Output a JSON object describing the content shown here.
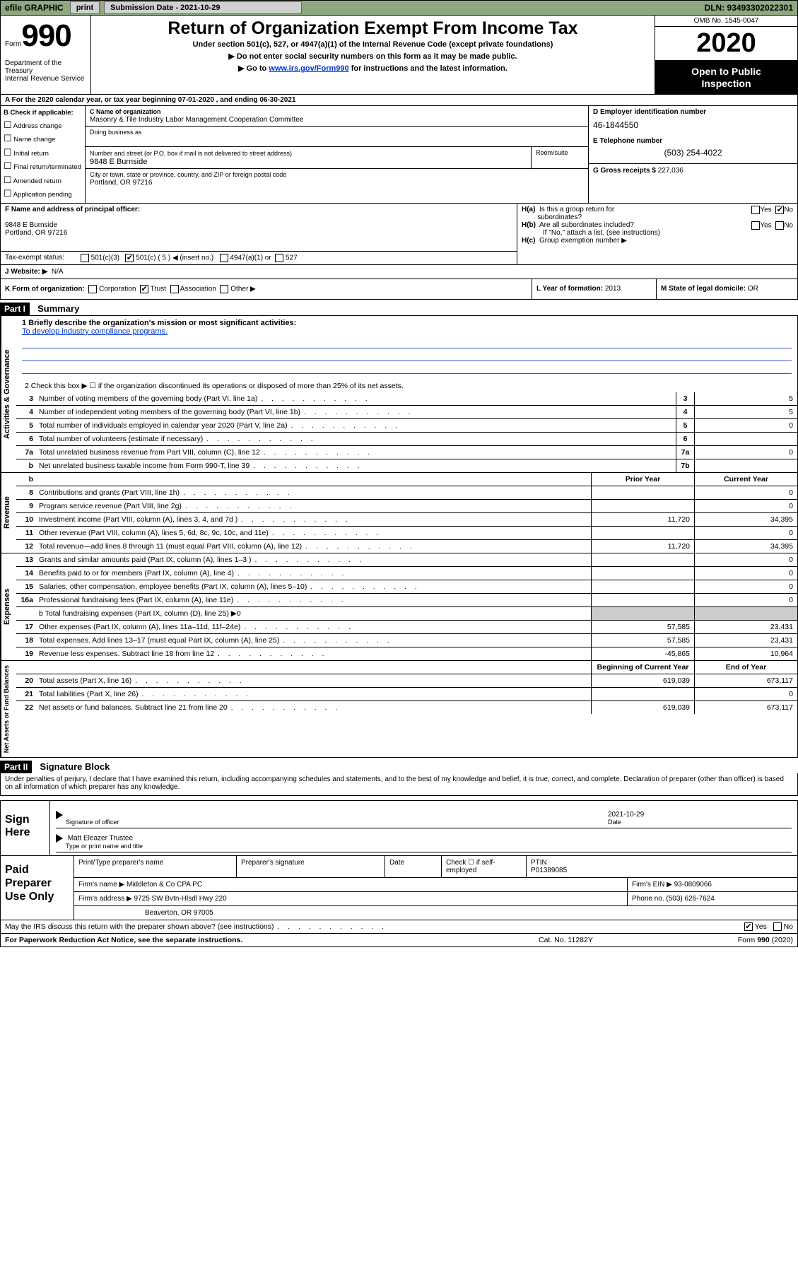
{
  "colors": {
    "topbar_bg": "#8fa880",
    "link": "#0033cc",
    "black": "#000000",
    "shaded": "#cccccc"
  },
  "topbar": {
    "efile_prefix": "efile",
    "efile_label": "GRAPHIC",
    "print_btn": "print",
    "submission_label": "Submission Date - 2021-10-29",
    "dln": "DLN: 93493302022301"
  },
  "header": {
    "form_label": "Form",
    "form_number": "990",
    "dept": "Department of the Treasury\nInternal Revenue Service",
    "title": "Return of Organization Exempt From Income Tax",
    "subtitle": "Under section 501(c), 527, or 4947(a)(1) of the Internal Revenue Code (except private foundations)",
    "instr1": "▶ Do not enter social security numbers on this form as it may be made public.",
    "instr2_prefix": "▶ Go to ",
    "instr2_link": "www.irs.gov/Form990",
    "instr2_suffix": " for instructions and the latest information.",
    "omb": "OMB No. 1545-0047",
    "year": "2020",
    "open_public": "Open to Public Inspection"
  },
  "section_a": "A   For the 2020 calendar year, or tax year beginning 07-01-2020    , and ending 06-30-2021",
  "box_b": {
    "title": "B Check if applicable:",
    "items": [
      "Address change",
      "Name change",
      "Initial return",
      "Final return/terminated",
      "Amended return",
      "Application pending"
    ]
  },
  "org": {
    "name_label": "C Name of organization",
    "name": "Masonry & Tile Industry Labor Management Cooperation Committee",
    "dba_label": "Doing business as",
    "dba": "",
    "street_label": "Number and street (or P.O. box if mail is not delivered to street address)",
    "street": "9848 E Burnside",
    "suite_label": "Room/suite",
    "city_label": "City or town, state or province, country, and ZIP or foreign postal code",
    "city": "Portland, OR  97216"
  },
  "box_d": {
    "ein_label": "D Employer identification number",
    "ein": "46-1844550",
    "tel_label": "E Telephone number",
    "tel": "(503) 254-4022",
    "gross_label": "G Gross receipts $",
    "gross": "227,036"
  },
  "po": {
    "label": "F Name and address of principal officer:",
    "addr1": "9848 E Burnside",
    "addr2": "Portland, OR  97216"
  },
  "tax_status": {
    "label": "Tax-exempt status:",
    "c3": "501(c)(3)",
    "c_insert_prefix": "501(c) (",
    "c_insert_val": "5",
    "c_insert_suffix": ") ◀ (insert no.)",
    "a1": "4947(a)(1) or",
    "s527": "527"
  },
  "h": {
    "ha": "H(a)  Is this a group return for subordinates?",
    "hb": "H(b)  Are all subordinates included?",
    "hb_note": "If \"No,\" attach a list. (see instructions)",
    "hc": "H(c)  Group exemption number ▶",
    "yes": "Yes",
    "no": "No"
  },
  "website": {
    "label": "J   Website: ▶",
    "value": "N/A"
  },
  "k": {
    "label": "K Form of organization:",
    "corp": "Corporation",
    "trust": "Trust",
    "assoc": "Association",
    "other": "Other ▶"
  },
  "l": {
    "label": "L Year of formation:",
    "value": "2013"
  },
  "m": {
    "label": "M State of legal domicile:",
    "value": "OR"
  },
  "part1": {
    "tag": "Part I",
    "title": "Summary"
  },
  "summary": {
    "mission_label": "1   Briefly describe the organization's mission or most significant activities:",
    "mission": "To develop industry compliance programs.",
    "line2": "2    Check this box ▶ ☐  if the organization discontinued its operations or disposed of more than 25% of its net assets.",
    "rows_top": [
      {
        "n": "3",
        "d": "Number of voting members of the governing body (Part VI, line 1a)",
        "bn": "3",
        "v": "5"
      },
      {
        "n": "4",
        "d": "Number of independent voting members of the governing body (Part VI, line 1b)",
        "bn": "4",
        "v": "5"
      },
      {
        "n": "5",
        "d": "Total number of individuals employed in calendar year 2020 (Part V, line 2a)",
        "bn": "5",
        "v": "0"
      },
      {
        "n": "6",
        "d": "Total number of volunteers (estimate if necessary)",
        "bn": "6",
        "v": ""
      },
      {
        "n": "7a",
        "d": "Total unrelated business revenue from Part VIII, column (C), line 12",
        "bn": "7a",
        "v": "0"
      },
      {
        "n": "b",
        "d": "Net unrelated business taxable income from Form 990-T, line 39",
        "bn": "7b",
        "v": ""
      }
    ],
    "col_headers": {
      "py": "Prior Year",
      "cy": "Current Year"
    },
    "rows_rev": [
      {
        "n": "8",
        "d": "Contributions and grants (Part VIII, line 1h)",
        "py": "",
        "cy": "0"
      },
      {
        "n": "9",
        "d": "Program service revenue (Part VIII, line 2g)",
        "py": "",
        "cy": "0"
      },
      {
        "n": "10",
        "d": "Investment income (Part VIII, column (A), lines 3, 4, and 7d )",
        "py": "11,720",
        "cy": "34,395"
      },
      {
        "n": "11",
        "d": "Other revenue (Part VIII, column (A), lines 5, 6d, 8c, 9c, 10c, and 11e)",
        "py": "",
        "cy": "0"
      },
      {
        "n": "12",
        "d": "Total revenue—add lines 8 through 11 (must equal Part VIII, column (A), line 12)",
        "py": "11,720",
        "cy": "34,395"
      }
    ],
    "rows_exp": [
      {
        "n": "13",
        "d": "Grants and similar amounts paid (Part IX, column (A), lines 1–3 )",
        "py": "",
        "cy": "0"
      },
      {
        "n": "14",
        "d": "Benefits paid to or for members (Part IX, column (A), line 4)",
        "py": "",
        "cy": "0"
      },
      {
        "n": "15",
        "d": "Salaries, other compensation, employee benefits (Part IX, column (A), lines 5–10)",
        "py": "",
        "cy": "0"
      },
      {
        "n": "16a",
        "d": "Professional fundraising fees (Part IX, column (A), line 11e)",
        "py": "",
        "cy": "0"
      }
    ],
    "line16b": "b   Total fundraising expenses (Part IX, column (D), line 25) ▶0",
    "rows_exp2": [
      {
        "n": "17",
        "d": "Other expenses (Part IX, column (A), lines 11a–11d, 11f–24e)",
        "py": "57,585",
        "cy": "23,431"
      },
      {
        "n": "18",
        "d": "Total expenses. Add lines 13–17 (must equal Part IX, column (A), line 25)",
        "py": "57,585",
        "cy": "23,431"
      },
      {
        "n": "19",
        "d": "Revenue less expenses. Subtract line 18 from line 12",
        "py": "-45,865",
        "cy": "10,964"
      }
    ],
    "col_headers2": {
      "py": "Beginning of Current Year",
      "cy": "End of Year"
    },
    "rows_net": [
      {
        "n": "20",
        "d": "Total assets (Part X, line 16)",
        "py": "619,039",
        "cy": "673,117"
      },
      {
        "n": "21",
        "d": "Total liabilities (Part X, line 26)",
        "py": "",
        "cy": "0"
      },
      {
        "n": "22",
        "d": "Net assets or fund balances. Subtract line 21 from line 20",
        "py": "619,039",
        "cy": "673,117"
      }
    ]
  },
  "sidebar": {
    "gov": "Activities & Governance",
    "rev": "Revenue",
    "exp": "Expenses",
    "net": "Net Assets or Fund Balances"
  },
  "part2": {
    "tag": "Part II",
    "title": "Signature Block"
  },
  "jurat": "Under penalties of perjury, I declare that I have examined this return, including accompanying schedules and statements, and to the best of my knowledge and belief, it is true, correct, and complete. Declaration of preparer (other than officer) is based on all information of which preparer has any knowledge.",
  "sign": {
    "label": "Sign Here",
    "sig_label": "Signature of officer",
    "date_label": "Date",
    "date": "2021-10-29",
    "name": "Matt Eleazer Trustee",
    "name_label": "Type or print name and title"
  },
  "prep": {
    "label": "Paid Preparer Use Only",
    "h_name": "Print/Type preparer's name",
    "h_sig": "Preparer's signature",
    "h_date": "Date",
    "h_self": "Check ☐ if self-employed",
    "h_ptin": "PTIN",
    "ptin": "P01389085",
    "firm_label": "Firm's name    ▶",
    "firm_name": "Middleton & Co CPA PC",
    "firm_ein_label": "Firm's EIN ▶",
    "firm_ein": "93-0809066",
    "addr_label": "Firm's address ▶",
    "addr1": "9725 SW Bvtn-Hlsdl Hwy 220",
    "addr2": "Beaverton, OR  97005",
    "phone_label": "Phone no.",
    "phone": "(503) 626-7624"
  },
  "discuss": {
    "q": "May the IRS discuss this return with the preparer shown above? (see instructions)",
    "yes": "Yes",
    "no": "No"
  },
  "footer": {
    "pra": "For Paperwork Reduction Act Notice, see the separate instructions.",
    "cat": "Cat. No. 11282Y",
    "form": "Form 990 (2020)"
  }
}
